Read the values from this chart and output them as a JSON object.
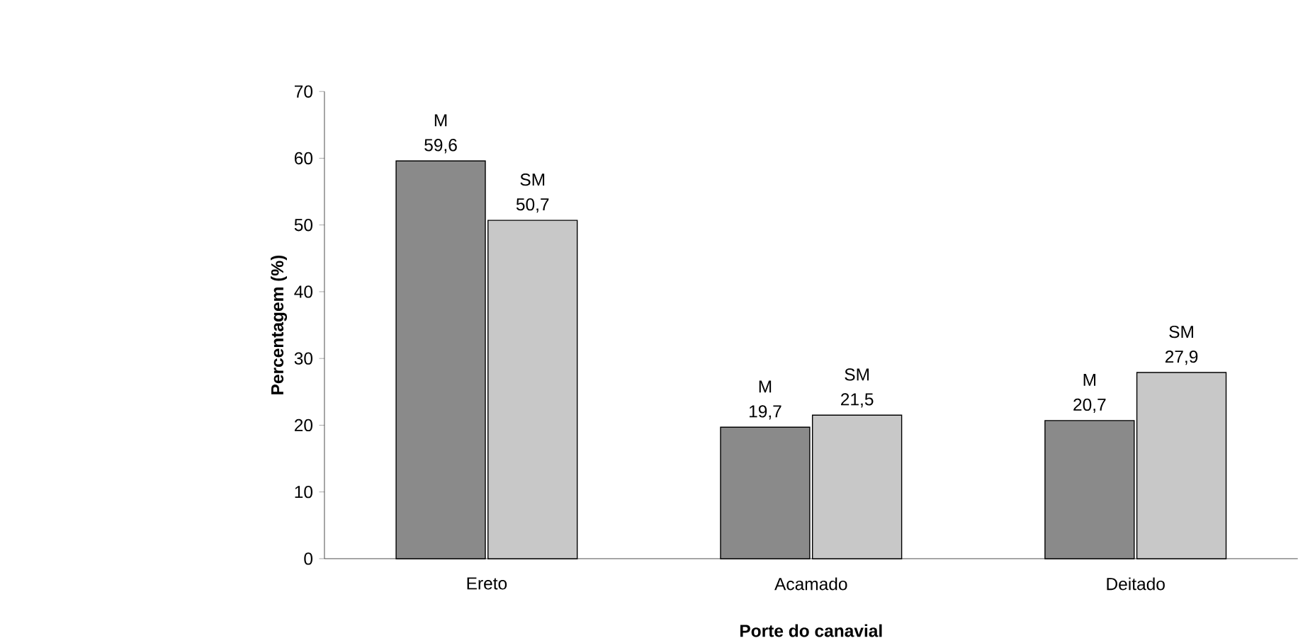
{
  "chart_data": {
    "type": "bar",
    "xlabel": "Porte do canavial",
    "ylabel": "Percentagem (%)",
    "categories": [
      "Ereto",
      "Acamado",
      "Deitado"
    ],
    "series": [
      {
        "name": "M",
        "color": "#8a8a8a",
        "values": [
          59.6,
          19.7,
          20.7
        ],
        "value_labels": [
          "59,6",
          "19,7",
          "20,7"
        ]
      },
      {
        "name": "SM",
        "color": "#c8c8c8",
        "values": [
          50.7,
          21.5,
          27.9
        ],
        "value_labels": [
          "50,7",
          "21,5",
          "27,9"
        ]
      }
    ],
    "ylim": [
      0,
      70
    ],
    "yticks": [
      0,
      10,
      20,
      30,
      40,
      50,
      60,
      70
    ]
  }
}
